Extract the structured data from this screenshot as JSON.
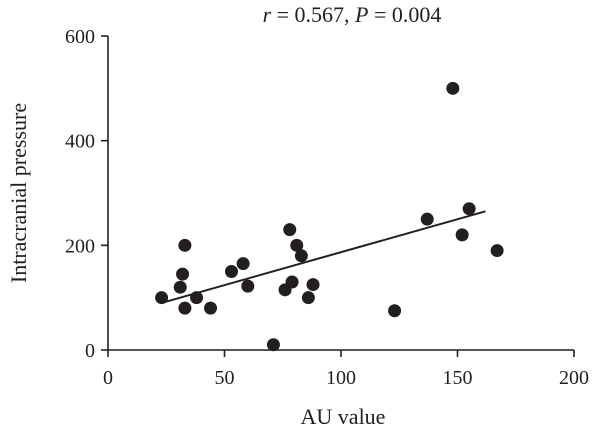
{
  "chart_data": {
    "type": "scatter",
    "title_parts": {
      "r_symbol": "r",
      "r_rest": " = 0.567, ",
      "p_symbol": "P",
      "p_rest": " = 0.004"
    },
    "xlabel": "AU value",
    "ylabel": "Intracranial pressure",
    "xlim": [
      0,
      200
    ],
    "ylim": [
      0,
      600
    ],
    "x_ticks": [
      0,
      50,
      100,
      150,
      200
    ],
    "y_ticks": [
      0,
      200,
      400,
      600
    ],
    "grid": false,
    "legend": "none",
    "marker_color": "#231f20",
    "series": [
      {
        "points": [
          {
            "x": 23,
            "y": 100
          },
          {
            "x": 31,
            "y": 120
          },
          {
            "x": 32,
            "y": 145
          },
          {
            "x": 33,
            "y": 200
          },
          {
            "x": 33,
            "y": 80
          },
          {
            "x": 38,
            "y": 100
          },
          {
            "x": 44,
            "y": 80
          },
          {
            "x": 53,
            "y": 150
          },
          {
            "x": 58,
            "y": 165
          },
          {
            "x": 60,
            "y": 122
          },
          {
            "x": 71,
            "y": 10
          },
          {
            "x": 76,
            "y": 115
          },
          {
            "x": 78,
            "y": 230
          },
          {
            "x": 79,
            "y": 130
          },
          {
            "x": 81,
            "y": 200
          },
          {
            "x": 83,
            "y": 180
          },
          {
            "x": 86,
            "y": 100
          },
          {
            "x": 88,
            "y": 125
          },
          {
            "x": 123,
            "y": 75
          },
          {
            "x": 137,
            "y": 250
          },
          {
            "x": 148,
            "y": 500
          },
          {
            "x": 152,
            "y": 220
          },
          {
            "x": 155,
            "y": 270
          },
          {
            "x": 167,
            "y": 190
          }
        ]
      }
    ],
    "trendline": {
      "x": [
        23,
        162
      ],
      "y": [
        90,
        265
      ]
    }
  }
}
